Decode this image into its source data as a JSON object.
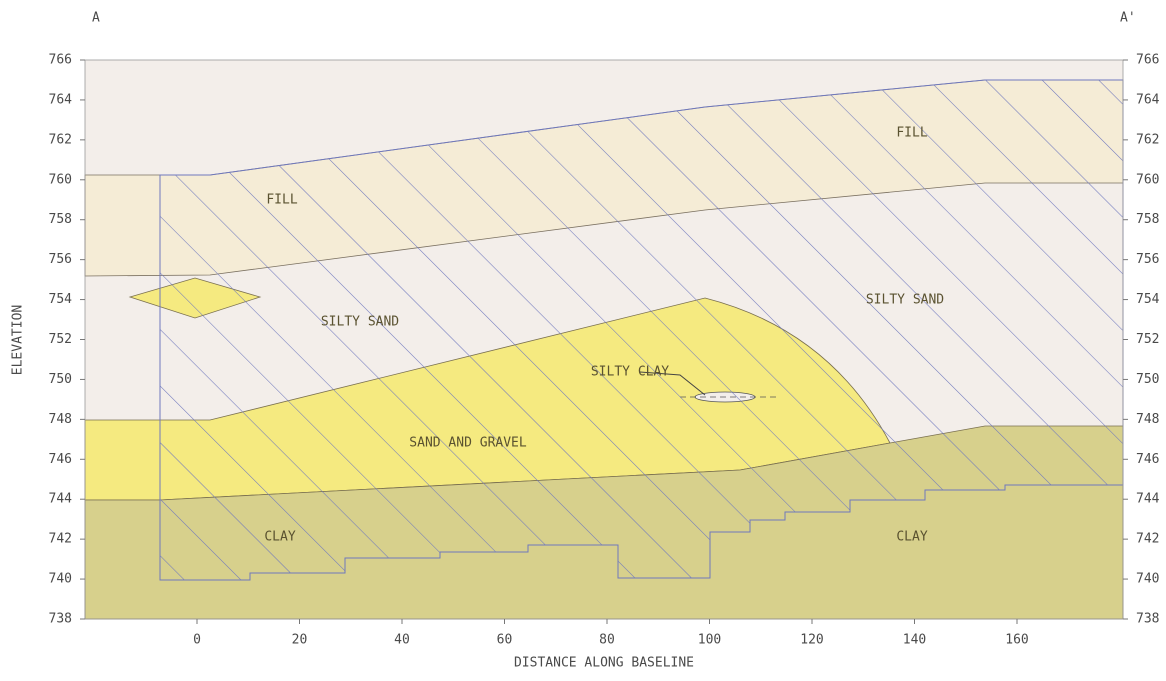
{
  "section": {
    "start_label": "A",
    "end_label": "A'"
  },
  "axes": {
    "y_title": "ELEVATION",
    "x_title": "DISTANCE ALONG BASELINE",
    "yticks": [
      738,
      740,
      742,
      744,
      746,
      748,
      750,
      752,
      754,
      756,
      758,
      760,
      762,
      764,
      766
    ],
    "xticks": [
      0,
      20,
      40,
      60,
      80,
      100,
      120,
      140,
      160
    ]
  },
  "layers": [
    {
      "label": "FILL"
    },
    {
      "label": "FILL"
    },
    {
      "label": "SILTY SAND"
    },
    {
      "label": "SILTY SAND"
    },
    {
      "label": "SAND AND GRAVEL"
    },
    {
      "label": "SILTY CLAY"
    },
    {
      "label": "CLAY"
    },
    {
      "label": "CLAY"
    }
  ]
}
